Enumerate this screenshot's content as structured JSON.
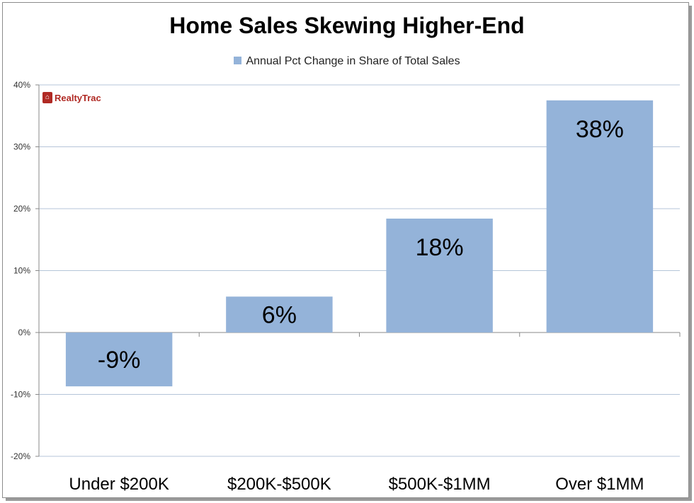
{
  "chart_data": {
    "type": "bar",
    "title": "Home Sales Skewing Higher-End",
    "categories": [
      "Under $200K",
      "$200K-$500K",
      "$500K-$1MM",
      "Over $1MM"
    ],
    "series": [
      {
        "name": "Annual Pct Change in Share of Total Sales",
        "values": [
          -8.7,
          5.8,
          18.4,
          37.5
        ]
      }
    ],
    "data_labels": [
      "-9%",
      "6%",
      "18%",
      "38%"
    ],
    "ylim": [
      -20,
      40
    ],
    "yticks": [
      40,
      30,
      20,
      10,
      0,
      -10,
      -20
    ],
    "ytick_labels": [
      "40%",
      "30%",
      "20%",
      "10%",
      "0%",
      "-10%",
      "-20%"
    ],
    "grid": true,
    "legend_position": "top",
    "bar_color": "#94b3d9"
  },
  "logo": {
    "text": "RealtyTrac"
  }
}
